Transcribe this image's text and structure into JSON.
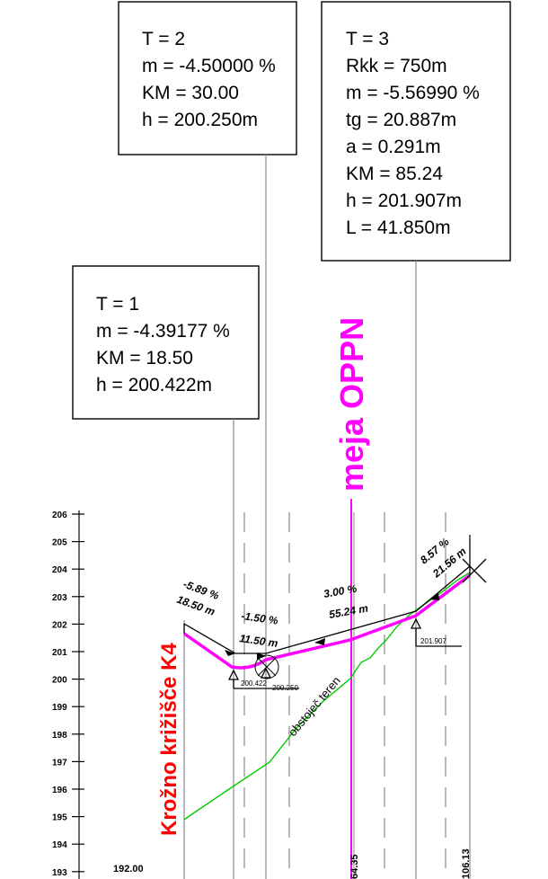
{
  "colors": {
    "design_line": "#ff00ff",
    "terrain_line": "#00cc00",
    "title_red": "#ff0000",
    "oppn": "#ff00ff",
    "guide": "#8a8a8a"
  },
  "boxes": {
    "t2": {
      "l1": "T = 2",
      "l2": "m = -4.50000 %",
      "l3": "KM = 30.00",
      "l4": "h = 200.250m"
    },
    "t3": {
      "l1": "T = 3",
      "l2": "Rkk = 750m",
      "l3": "m = -5.56990 %",
      "l4": "tg = 20.887m",
      "l5": "a = 0.291m",
      "l6": "KM = 85.24",
      "l7": "h = 201.907m",
      "l8": "L = 41.850m"
    },
    "t1": {
      "l1": "T = 1",
      "l2": "m = -4.39177 %",
      "l3": "KM = 18.50",
      "l4": "h = 200.422m"
    }
  },
  "labels": {
    "oppn": "meja OPPN",
    "roundabout": "Krožno križišče K4",
    "terrain": "obstoječ teren"
  },
  "y_axis": {
    "ticks": [
      "206",
      "205",
      "204",
      "203",
      "202",
      "201",
      "200",
      "199",
      "198",
      "197",
      "196",
      "195",
      "194",
      "193"
    ]
  },
  "segments": {
    "s1_slope": "-5.89 %",
    "s1_len": "18.50 m",
    "s2_slope": "-1.50 %",
    "s2_len": "11.50 m",
    "s3_slope": "3.00 %",
    "s3_len": "55.24 m",
    "s4_slope": "8.57 %",
    "s4_len": "21.56 m"
  },
  "elevations": {
    "e1": "200.422",
    "e2": "200.250",
    "e3": "201.907"
  },
  "stations": {
    "start": "192.00",
    "oppn": "64.35",
    "end": "106.13"
  }
}
